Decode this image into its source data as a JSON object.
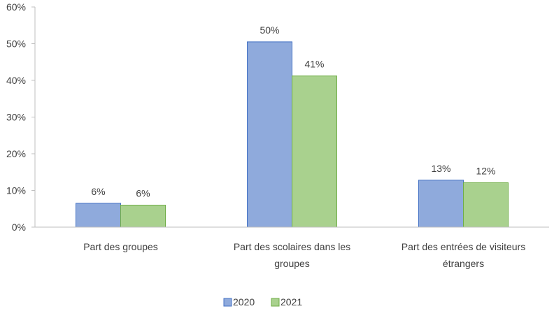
{
  "chart_data": {
    "type": "bar",
    "categories": [
      [
        "Part des groupes"
      ],
      [
        "Part des scolaires dans les",
        "groupes"
      ],
      [
        "Part des entrées de visiteurs",
        "étrangers"
      ]
    ],
    "series": [
      {
        "name": "2020",
        "values": [
          6.5,
          50.5,
          12.8
        ],
        "labels": [
          "6%",
          "50%",
          "13%"
        ],
        "color": "#8faadc",
        "edge": "#4472c4"
      },
      {
        "name": "2021",
        "values": [
          6.0,
          41.2,
          12.1
        ],
        "labels": [
          "6%",
          "41%",
          "12%"
        ],
        "color": "#a9d18e",
        "edge": "#70ad47"
      }
    ],
    "ylim": [
      0,
      60
    ],
    "yticks": [
      0,
      10,
      20,
      30,
      40,
      50,
      60
    ],
    "ytick_labels": [
      "0%",
      "10%",
      "20%",
      "30%",
      "40%",
      "50%",
      "60%"
    ],
    "grid": false,
    "legend_position": "bottom-center",
    "axis_color": "#bfbfbf"
  }
}
